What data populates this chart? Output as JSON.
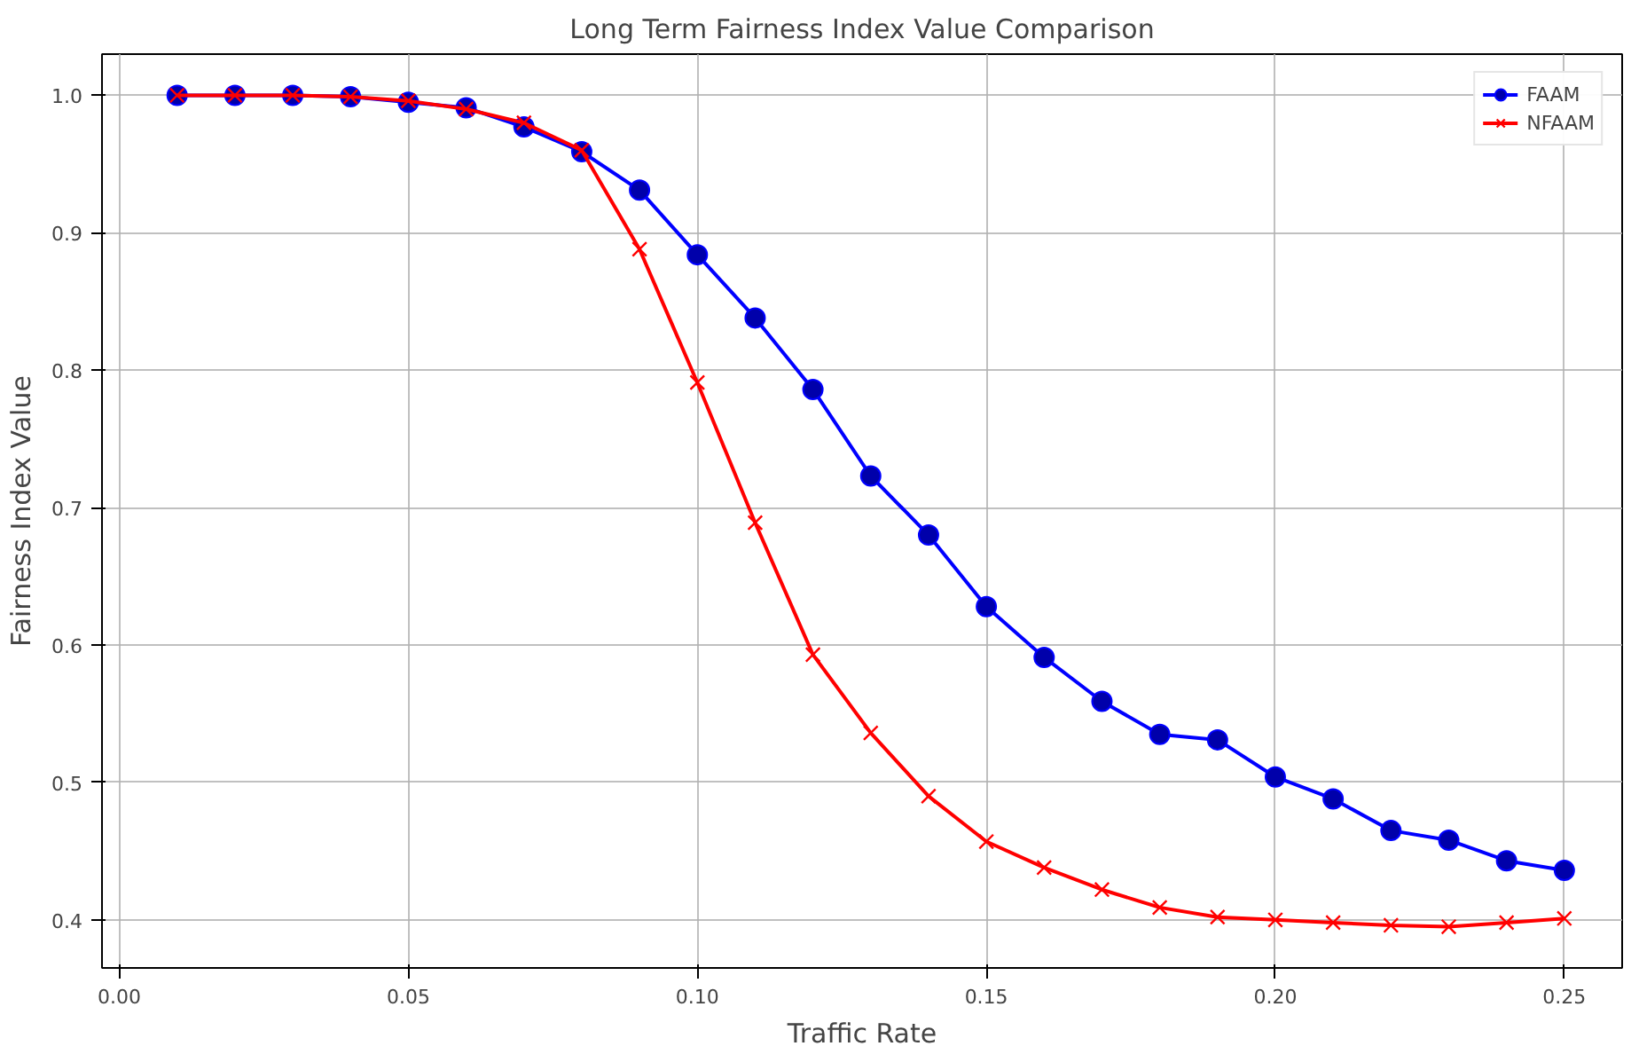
{
  "chart_data": {
    "type": "line",
    "title": "Long Term Fairness Index Value Comparison",
    "xlabel": "Traffic Rate",
    "ylabel": "Fairness Index Value",
    "x": [
      0.01,
      0.02,
      0.03,
      0.04,
      0.05,
      0.06,
      0.07,
      0.08,
      0.09,
      0.1,
      0.11,
      0.12,
      0.13,
      0.14,
      0.15,
      0.16,
      0.17,
      0.18,
      0.19,
      0.2,
      0.21,
      0.22,
      0.23,
      0.24,
      0.25
    ],
    "series": [
      {
        "name": "FAAM",
        "color": "#0000ff",
        "marker": "circle",
        "values": [
          1.0,
          1.0,
          1.0,
          0.999,
          0.995,
          0.991,
          0.977,
          0.959,
          0.931,
          0.884,
          0.838,
          0.786,
          0.723,
          0.68,
          0.628,
          0.591,
          0.559,
          0.535,
          0.531,
          0.504,
          0.488,
          0.465,
          0.458,
          0.443,
          0.436
        ]
      },
      {
        "name": "NFAAM",
        "color": "#ff0000",
        "marker": "cross",
        "values": [
          1.0,
          1.0,
          1.0,
          0.999,
          0.996,
          0.99,
          0.98,
          0.96,
          0.888,
          0.791,
          0.689,
          0.593,
          0.536,
          0.49,
          0.457,
          0.438,
          0.422,
          0.409,
          0.402,
          0.4,
          0.398,
          0.396,
          0.395,
          0.398,
          0.401
        ]
      }
    ],
    "xlim": [
      -0.003,
      0.26
    ],
    "ylim": [
      0.365,
      1.03
    ],
    "xticks": [
      {
        "value": 0,
        "label": "0.00"
      },
      {
        "value": 0.05,
        "label": "0.05"
      },
      {
        "value": 0.1,
        "label": "0.10"
      },
      {
        "value": 0.15,
        "label": "0.15"
      },
      {
        "value": 0.2,
        "label": "0.20"
      },
      {
        "value": 0.25,
        "label": "0.25"
      }
    ],
    "yticks": [
      {
        "value": 0.4,
        "label": "0.4"
      },
      {
        "value": 0.5,
        "label": "0.5"
      },
      {
        "value": 0.6,
        "label": "0.6"
      },
      {
        "value": 0.7,
        "label": "0.7"
      },
      {
        "value": 0.8,
        "label": "0.8"
      },
      {
        "value": 0.9,
        "label": "0.9"
      },
      {
        "value": 1.0,
        "label": "1.0"
      }
    ],
    "grid": true,
    "legend": "top right",
    "line_style": "solid"
  }
}
